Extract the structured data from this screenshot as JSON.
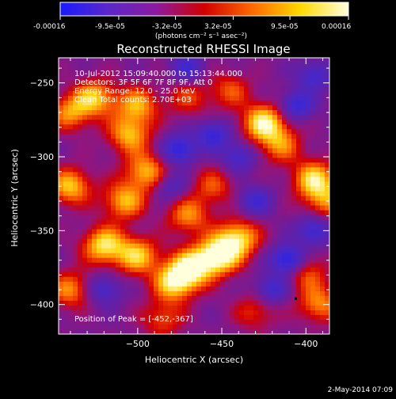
{
  "colorbar": {
    "tick_labels": [
      "-0.00016",
      "-9.5e-05",
      "-3.2e-05",
      "3.2e-05",
      "9.5e-05",
      "0.00016"
    ],
    "units_label": "(photons cm⁻² s⁻¹ asec⁻²)",
    "colors": [
      "#1a1aff",
      "#5a28c8",
      "#8c1aa0",
      "#d00000",
      "#ff6a00",
      "#ffd800",
      "#ffffe0"
    ],
    "min": -0.00016,
    "max": 0.00016
  },
  "chart_data": {
    "type": "heatmap",
    "title": "Reconstructed RHESSI Image",
    "xlabel": "Heliocentric X (arcsec)",
    "ylabel": "Heliocentric Y (arcsec)",
    "xlim": [
      -547,
      -386
    ],
    "ylim": [
      -420,
      -233
    ],
    "x_ticks": [
      -500,
      -450,
      -400
    ],
    "y_ticks": [
      -400,
      -350,
      -300,
      -250
    ],
    "x_tick_labels": [
      "−500",
      "−450",
      "−400"
    ],
    "y_tick_labels": [
      "−400",
      "−350",
      "−300",
      "−250"
    ],
    "annotations": [
      "10-Jul-2012 15:09:40.000 to 15:13:44.000",
      "Detectors: 3F 5F 6F 7F 8F 9F, Att 0",
      "Energy Range: 12.0 - 25.0 keV",
      "Clean     Total counts: 2.70E+03"
    ],
    "peak_label": "Position of Peak = [-452,-367]",
    "peak": [
      -452,
      -367
    ],
    "grid": false,
    "sources": [
      {
        "x": -452,
        "y": -367,
        "value": 1.0
      },
      {
        "x": -468,
        "y": -375,
        "value": 0.85
      },
      {
        "x": -440,
        "y": -355,
        "value": 0.8
      },
      {
        "x": -425,
        "y": -277,
        "value": 0.9
      },
      {
        "x": -415,
        "y": -292,
        "value": 0.55
      },
      {
        "x": -395,
        "y": -315,
        "value": 0.8
      },
      {
        "x": -388,
        "y": -330,
        "value": 0.55
      },
      {
        "x": -478,
        "y": -385,
        "value": 0.85
      },
      {
        "x": -500,
        "y": -367,
        "value": 0.75
      },
      {
        "x": -520,
        "y": -360,
        "value": 0.85
      },
      {
        "x": -508,
        "y": -330,
        "value": 0.7
      },
      {
        "x": -495,
        "y": -310,
        "value": 0.7
      },
      {
        "x": -505,
        "y": -285,
        "value": 0.7
      },
      {
        "x": -500,
        "y": -265,
        "value": 0.65
      },
      {
        "x": -525,
        "y": -260,
        "value": 0.7
      },
      {
        "x": -540,
        "y": -270,
        "value": 0.6
      },
      {
        "x": -540,
        "y": -320,
        "value": 0.75
      },
      {
        "x": -540,
        "y": -390,
        "value": 0.6
      },
      {
        "x": -470,
        "y": -340,
        "value": 0.6
      },
      {
        "x": -455,
        "y": -320,
        "value": 0.45
      },
      {
        "x": -445,
        "y": -255,
        "value": 0.45
      },
      {
        "x": -470,
        "y": -260,
        "value": 0.4
      },
      {
        "x": -400,
        "y": -378,
        "value": 0.5
      },
      {
        "x": -392,
        "y": -400,
        "value": 0.6
      },
      {
        "x": -430,
        "y": -405,
        "value": 0.4
      },
      {
        "x": -485,
        "y": -410,
        "value": 0.45
      }
    ],
    "dips": [
      {
        "x": -410,
        "y": -370,
        "value": -0.9
      },
      {
        "x": -395,
        "y": -350,
        "value": -0.6
      },
      {
        "x": -475,
        "y": -295,
        "value": -0.7
      },
      {
        "x": -455,
        "y": -285,
        "value": -0.6
      },
      {
        "x": -440,
        "y": -300,
        "value": -0.5
      },
      {
        "x": -405,
        "y": -265,
        "value": -0.6
      },
      {
        "x": -395,
        "y": -245,
        "value": -0.5
      },
      {
        "x": -470,
        "y": -240,
        "value": -0.5
      },
      {
        "x": -430,
        "y": -330,
        "value": -0.5
      },
      {
        "x": -520,
        "y": -390,
        "value": -0.5
      },
      {
        "x": -420,
        "y": -390,
        "value": -0.55
      },
      {
        "x": -480,
        "y": -320,
        "value": -0.4
      }
    ]
  },
  "footer": {
    "timestamp": "2-May-2014 07:09"
  }
}
